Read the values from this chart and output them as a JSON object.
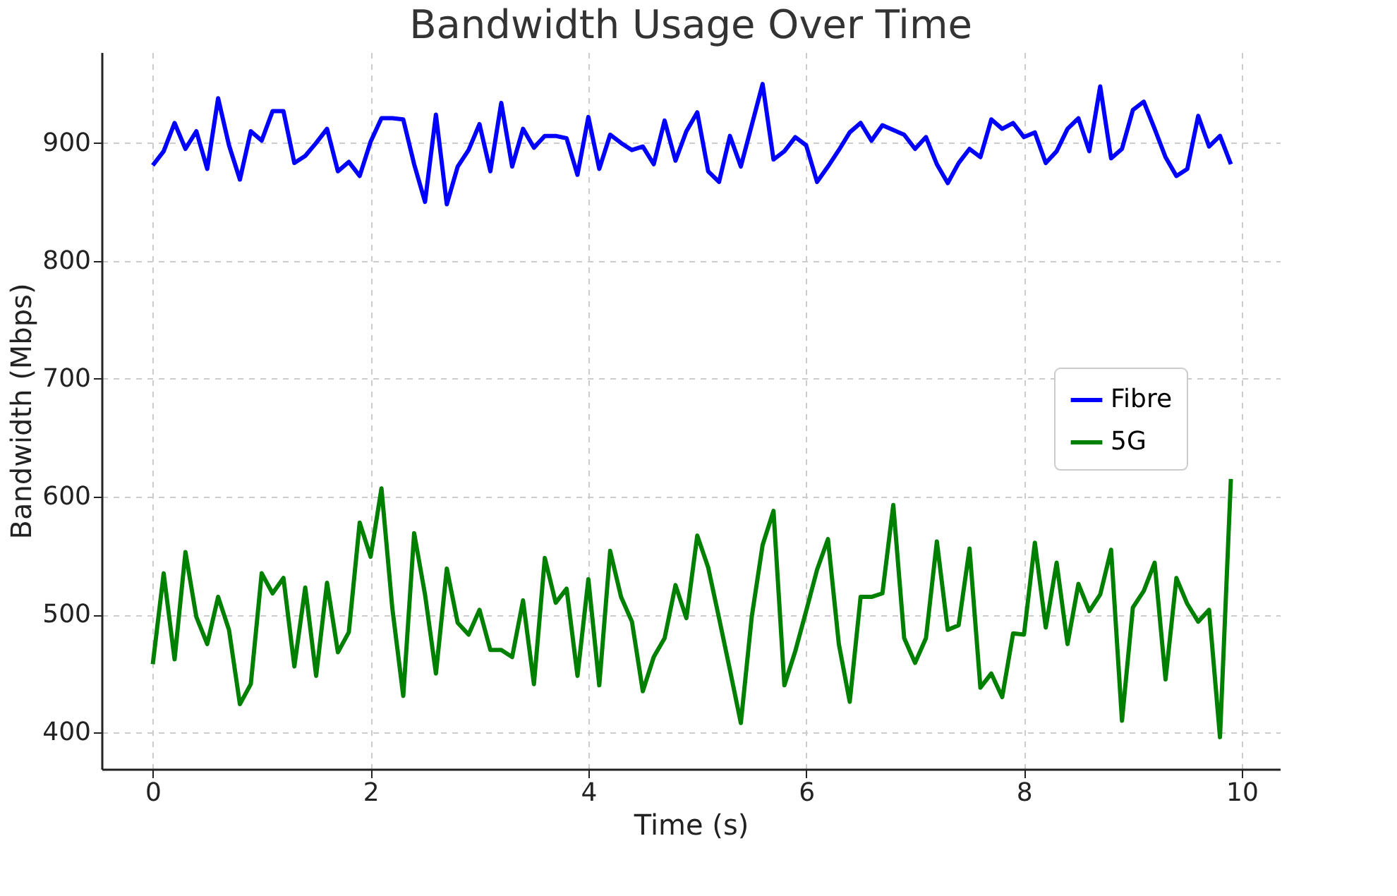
{
  "chart_data": {
    "type": "line",
    "title": "Bandwidth Usage Over Time",
    "xlabel": "Time (s)",
    "ylabel": "Bandwidth (Mbps)",
    "x": [
      0,
      0.1,
      0.2,
      0.3,
      0.4,
      0.5,
      0.6,
      0.7,
      0.8,
      0.9,
      1.0,
      1.1,
      1.2,
      1.3,
      1.4,
      1.5,
      1.6,
      1.7,
      1.8,
      1.9,
      2.0,
      2.1,
      2.2,
      2.3,
      2.4,
      2.5,
      2.6,
      2.7,
      2.8,
      2.9,
      3.0,
      3.1,
      3.2,
      3.3,
      3.4,
      3.5,
      3.6,
      3.7,
      3.8,
      3.9,
      4.0,
      4.1,
      4.2,
      4.3,
      4.4,
      4.5,
      4.6,
      4.7,
      4.8,
      4.9,
      5.0,
      5.1,
      5.2,
      5.3,
      5.4,
      5.5,
      5.6,
      5.7,
      5.8,
      5.9,
      6.0,
      6.1,
      6.2,
      6.3,
      6.4,
      6.5,
      6.6,
      6.7,
      6.8,
      6.9,
      7.0,
      7.1,
      7.2,
      7.3,
      7.4,
      7.5,
      7.6,
      7.7,
      7.8,
      7.9,
      8.0,
      8.1,
      8.2,
      8.3,
      8.4,
      8.5,
      8.6,
      8.7,
      8.8,
      8.9,
      9.0,
      9.1,
      9.2,
      9.3,
      9.4,
      9.5,
      9.6,
      9.7,
      9.8,
      9.9
    ],
    "series": [
      {
        "name": "Fibre",
        "color": "#0000ff",
        "values": [
          881,
          893,
          917,
          895,
          910,
          878,
          938,
          898,
          869,
          910,
          902,
          927,
          927,
          883,
          889,
          900,
          912,
          876,
          884,
          872,
          901,
          921,
          921,
          920,
          882,
          850,
          924,
          848,
          880,
          894,
          916,
          876,
          934,
          880,
          912,
          896,
          906,
          906,
          904,
          873,
          922,
          878,
          907,
          900,
          894,
          897,
          882,
          919,
          885,
          910,
          926,
          876,
          867,
          906,
          880,
          915,
          950,
          886,
          893,
          905,
          898,
          867,
          880,
          894,
          909,
          917,
          902,
          915,
          911,
          907,
          895,
          905,
          882,
          866,
          883,
          895,
          888,
          920,
          912,
          917,
          905,
          909,
          883,
          893,
          912,
          921,
          893,
          948,
          887,
          895,
          928,
          935,
          912,
          888,
          872,
          878,
          923,
          897,
          906,
          882
        ]
      },
      {
        "name": "5G",
        "color": "#008000",
        "values": [
          458,
          535,
          462,
          553,
          498,
          475,
          515,
          487,
          424,
          441,
          535,
          518,
          531,
          456,
          523,
          448,
          527,
          468,
          485,
          578,
          549,
          607,
          505,
          431,
          569,
          517,
          450,
          539,
          493,
          483,
          504,
          470,
          470,
          464,
          512,
          441,
          548,
          510,
          522,
          448,
          530,
          440,
          554,
          515,
          494,
          435,
          464,
          480,
          525,
          497,
          567,
          540,
          497,
          453,
          408,
          498,
          559,
          588,
          440,
          469,
          503,
          538,
          564,
          475,
          426,
          515,
          515,
          518,
          593,
          480,
          459,
          480,
          562,
          487,
          491,
          556,
          438,
          450,
          430,
          484,
          483,
          561,
          489,
          544,
          475,
          526,
          503,
          517,
          555,
          410,
          506,
          520,
          544,
          445,
          531,
          509,
          494,
          504,
          396,
          615
        ]
      }
    ],
    "xlim": [
      -0.47,
      10.35
    ],
    "xticks": [
      0,
      2,
      4,
      6,
      8,
      10
    ],
    "ylim": [
      369,
      977
    ],
    "yticks": [
      400,
      500,
      600,
      700,
      800,
      900
    ],
    "grid": true,
    "legend": "right",
    "line_style": "solid",
    "marker": "none"
  }
}
